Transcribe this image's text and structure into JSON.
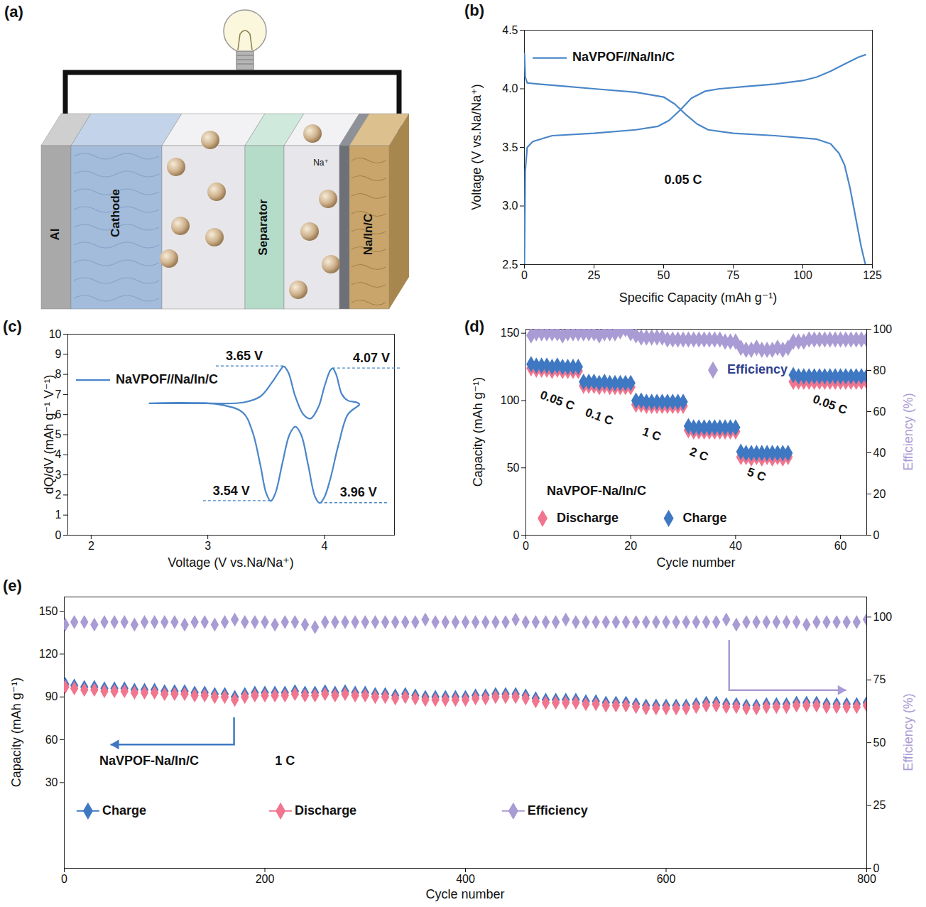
{
  "diagram": {
    "panel": "(a)",
    "current_collector": "Al",
    "cathode": "Cathode",
    "separator": "Separator",
    "anode": "Na/In/C",
    "ion": "Na⁺"
  },
  "chart_data": [
    {
      "panel": "(b)",
      "type": "line",
      "x_label": "Specific Capacity (mAh g⁻¹)",
      "y_label": "Voltage (V vs.Na/Na⁺)",
      "xlim": [
        0,
        125
      ],
      "xticks": [
        0,
        25,
        50,
        75,
        100,
        125
      ],
      "ylim": [
        2.5,
        4.5
      ],
      "yticks": [
        2.5,
        {
          "value": 3,
          "label": "3.0"
        },
        3.5,
        {
          "value": 4,
          "label": "4.0"
        },
        4.5
      ],
      "legend": "top-left",
      "annotations": [
        {
          "text": "0.05 C",
          "x": 57,
          "y": 3.22
        }
      ],
      "series": [
        {
          "name": "NaVPOF//Na/In/C",
          "color": "#4a86c8",
          "x": [
            0,
            0.3,
            1,
            3,
            10,
            25,
            40,
            48,
            52,
            56,
            60,
            65,
            70,
            80,
            90,
            100,
            105,
            110,
            115,
            120,
            122.5,
            122.5,
            0,
            0.3,
            1,
            5,
            15,
            25,
            40,
            50,
            54,
            58,
            62,
            66,
            75,
            90,
            105,
            110,
            113,
            115,
            117,
            119,
            121,
            122.5
          ],
          "values": [
            2.5,
            3.3,
            3.5,
            3.55,
            3.6,
            3.62,
            3.65,
            3.68,
            3.73,
            3.82,
            3.92,
            3.98,
            4.0,
            4.02,
            4.04,
            4.07,
            4.1,
            4.15,
            4.21,
            4.27,
            4.29,
            null,
            4.3,
            4.1,
            4.05,
            4.04,
            4.02,
            4.0,
            3.97,
            3.93,
            3.87,
            3.78,
            3.7,
            3.65,
            3.62,
            3.6,
            3.57,
            3.53,
            3.45,
            3.35,
            3.15,
            2.9,
            2.65,
            2.5
          ]
        }
      ]
    },
    {
      "panel": "(c)",
      "type": "line",
      "x_label": "Voltage (V vs.Na/Na⁺)",
      "y_label": "dQ/dV (mAh g⁻¹ V⁻¹)",
      "tick_labels": "x",
      "xlim": [
        1.8,
        4.6
      ],
      "xticks": [
        2,
        3,
        4
      ],
      "ylim": [
        0,
        10
      ],
      "legend": "top-left",
      "annotations": [
        {
          "text": "3.65 V",
          "x": 3.65,
          "y": 8.4
        },
        {
          "text": "4.07 V",
          "x": 4.07,
          "y": 8.3
        },
        {
          "text": "3.54 V",
          "x": 3.54,
          "y": 1.7
        },
        {
          "text": "3.96 V",
          "x": 3.96,
          "y": 1.6
        }
      ],
      "series": [
        {
          "name": "NaVPOF//Na/In/C",
          "color": "#4a86c8",
          "x": [
            2.5,
            3.0,
            3.3,
            3.45,
            3.55,
            3.62,
            3.65,
            3.69,
            3.75,
            3.82,
            3.88,
            3.95,
            4.0,
            4.05,
            4.07,
            4.1,
            4.15,
            4.2,
            4.28,
            4.3,
            4.28,
            4.2,
            4.12,
            4.05,
            4.0,
            3.96,
            3.92,
            3.86,
            3.8,
            3.75,
            3.7,
            3.64,
            3.58,
            3.54,
            3.5,
            3.45,
            3.38,
            3.3,
            3.1,
            2.5
          ],
          "values": [
            6.56,
            6.56,
            6.6,
            6.9,
            7.6,
            8.2,
            8.4,
            8.1,
            6.9,
            6.0,
            5.8,
            6.4,
            7.4,
            8.2,
            8.3,
            8.0,
            7.0,
            6.7,
            6.6,
            6.5,
            6.4,
            6.0,
            4.5,
            2.8,
            1.9,
            1.6,
            1.9,
            3.5,
            5.0,
            5.4,
            5.0,
            3.6,
            2.1,
            1.7,
            2.1,
            3.5,
            5.2,
            6.1,
            6.5,
            6.56
          ]
        }
      ]
    },
    {
      "panel": "(d)",
      "type": "scatter",
      "marker": "diamond",
      "x_label": "Cycle number",
      "y_label": "Capacity (mAh g⁻¹)",
      "y2_label": "Efficiency (%)",
      "xlim": [
        0,
        65
      ],
      "xticks": [
        0,
        20,
        40,
        60
      ],
      "ylim": [
        0,
        153
      ],
      "yticks": [
        0,
        50,
        100,
        150
      ],
      "y2lim": [
        0,
        100
      ],
      "y2ticks": [
        0,
        20,
        40,
        60,
        80,
        100
      ],
      "legend": "bottom-left",
      "annotations": [
        {
          "text": "NaVPOF-Na/In/C",
          "x": 4,
          "y": 33
        }
      ],
      "rate_labels": [
        {
          "text": "0.05 C",
          "x": 6,
          "y": 100
        },
        {
          "text": "0.1 C",
          "x": 14,
          "y": 88
        },
        {
          "text": "1 C",
          "x": 24,
          "y": 75
        },
        {
          "text": "2 C",
          "x": 33,
          "y": 60
        },
        {
          "text": "5 C",
          "x": 44,
          "y": 45
        },
        {
          "text": "0.05 C",
          "x": 58,
          "y": 97
        }
      ],
      "x": [
        1,
        2,
        3,
        4,
        5,
        6,
        7,
        8,
        9,
        10,
        11,
        12,
        13,
        14,
        15,
        16,
        17,
        18,
        19,
        20,
        21,
        22,
        23,
        24,
        25,
        26,
        27,
        28,
        29,
        30,
        31,
        32,
        33,
        34,
        35,
        36,
        37,
        38,
        39,
        40,
        41,
        42,
        43,
        44,
        45,
        46,
        47,
        48,
        49,
        50,
        51,
        52,
        53,
        54,
        55,
        56,
        57,
        58,
        59,
        60,
        61,
        62,
        63,
        64,
        65
      ],
      "series": [
        {
          "name": "Discharge",
          "color": "#f0758e",
          "marker": "diamond",
          "values": [
            124,
            123,
            123,
            123,
            122,
            123,
            122,
            122,
            122,
            122,
            111,
            111,
            111,
            110,
            111,
            110,
            110,
            110,
            110,
            110,
            97,
            97,
            96,
            96,
            96,
            96,
            96,
            96,
            96,
            96,
            78,
            77,
            77,
            77,
            77,
            77,
            77,
            77,
            77,
            77,
            58,
            58,
            57,
            58,
            57,
            58,
            57,
            58,
            57,
            58,
            114,
            114,
            114,
            114,
            114,
            114,
            114,
            114,
            114,
            114,
            114,
            114,
            114,
            114,
            114
          ]
        },
        {
          "name": "Charge",
          "color": "#3f78c2",
          "marker": "diamond",
          "values": [
            127,
            126,
            126,
            126,
            125,
            126,
            125,
            125,
            125,
            125,
            114,
            114,
            114,
            113,
            114,
            113,
            113,
            113,
            113,
            113,
            100,
            100,
            99,
            99,
            99,
            99,
            99,
            99,
            99,
            99,
            81,
            80,
            80,
            80,
            80,
            80,
            80,
            80,
            80,
            80,
            62,
            61,
            61,
            61,
            61,
            61,
            61,
            61,
            61,
            61,
            119,
            118,
            118,
            118,
            118,
            118,
            118,
            118,
            118,
            118,
            118,
            118,
            118,
            118,
            118
          ]
        },
        {
          "name": "Efficiency",
          "color": "#a99bd3",
          "marker": "diamond",
          "axis": "y2",
          "values": [
            97,
            98,
            98,
            98,
            98,
            98,
            97,
            98,
            98,
            98,
            98,
            98,
            98,
            97,
            98,
            98,
            98,
            99,
            100,
            98,
            97,
            96,
            96,
            96,
            96,
            96,
            95,
            95,
            95,
            95,
            95,
            95,
            95,
            95,
            95,
            95,
            95,
            94,
            94,
            94,
            91,
            90,
            90,
            91,
            90,
            90,
            90,
            91,
            90,
            91,
            94,
            94,
            94,
            95,
            95,
            95,
            95,
            95,
            95,
            95,
            95,
            95,
            95,
            95,
            95
          ]
        }
      ]
    },
    {
      "panel": "(e)",
      "type": "scatter",
      "marker": "diamond",
      "x_label": "Cycle number",
      "y_label": "Capacity (mAh g⁻¹)",
      "y2_label": "Efficiency (%)",
      "xlim": [
        0,
        800
      ],
      "xticks": [
        0,
        200,
        400,
        600,
        800
      ],
      "ylim": [
        -30,
        160
      ],
      "yticks": [
        30,
        60,
        90,
        120,
        150
      ],
      "y2lim": [
        0,
        108
      ],
      "y2ticks": [
        0,
        25,
        50,
        75,
        100
      ],
      "legend": "bottom-left",
      "annotations": [
        {
          "text": "NaVPOF-Na/In/C",
          "x": 35,
          "y": 45
        },
        {
          "text": "1 C",
          "x": 210,
          "y": 45
        }
      ],
      "x": [
        1,
        10,
        20,
        30,
        40,
        50,
        60,
        70,
        80,
        90,
        100,
        110,
        120,
        130,
        140,
        150,
        160,
        170,
        180,
        190,
        200,
        210,
        220,
        230,
        240,
        250,
        260,
        270,
        280,
        290,
        300,
        310,
        320,
        330,
        340,
        350,
        360,
        370,
        380,
        390,
        400,
        410,
        420,
        430,
        440,
        450,
        460,
        470,
        480,
        490,
        500,
        510,
        520,
        530,
        540,
        550,
        560,
        570,
        580,
        590,
        600,
        610,
        620,
        630,
        640,
        650,
        660,
        670,
        680,
        690,
        700,
        710,
        720,
        730,
        740,
        750,
        760,
        770,
        780,
        790,
        800
      ],
      "series": [
        {
          "name": "Charge",
          "color": "#3f78c2",
          "marker": "diamond",
          "values": [
            99,
            98,
            97,
            97,
            96,
            96,
            96,
            95,
            95,
            95,
            94,
            94,
            94,
            93,
            93,
            92,
            92,
            90,
            92,
            93,
            93,
            93,
            93,
            94,
            93,
            93,
            94,
            93,
            94,
            93,
            93,
            92,
            92,
            91,
            92,
            91,
            90,
            90,
            90,
            90,
            90,
            91,
            91,
            92,
            92,
            92,
            91,
            89,
            88,
            88,
            88,
            88,
            87,
            87,
            86,
            86,
            86,
            85,
            84,
            84,
            84,
            84,
            84,
            85,
            86,
            86,
            85,
            85,
            84,
            84,
            85,
            85,
            85,
            86,
            86,
            86,
            85,
            85,
            85,
            85,
            86
          ]
        },
        {
          "name": "Discharge",
          "color": "#f0758e",
          "marker": "diamond",
          "values": [
            97,
            96,
            95,
            95,
            94,
            94,
            94,
            93,
            93,
            93,
            92,
            92,
            92,
            91,
            91,
            90,
            90,
            88,
            90,
            91,
            91,
            91,
            91,
            92,
            91,
            91,
            92,
            91,
            92,
            91,
            91,
            90,
            90,
            89,
            90,
            89,
            88,
            88,
            88,
            88,
            88,
            89,
            89,
            90,
            90,
            90,
            89,
            87,
            86,
            86,
            86,
            86,
            85,
            85,
            84,
            84,
            84,
            83,
            82,
            82,
            82,
            82,
            82,
            83,
            84,
            84,
            83,
            83,
            82,
            82,
            83,
            83,
            83,
            84,
            84,
            84,
            83,
            83,
            83,
            83,
            84
          ]
        },
        {
          "name": "Efficiency",
          "color": "#a99bd3",
          "marker": "diamond",
          "axis": "y2",
          "values": [
            97,
            98,
            98,
            97,
            98,
            98,
            98,
            97,
            98,
            98,
            98,
            98,
            97,
            98,
            98,
            97,
            98,
            99,
            98,
            98,
            98,
            97,
            98,
            98,
            97,
            96,
            98,
            98,
            98,
            98,
            98,
            98,
            98,
            98,
            98,
            98,
            99,
            98,
            98,
            98,
            98,
            98,
            98,
            98,
            98,
            99,
            98,
            98,
            98,
            98,
            99,
            98,
            98,
            98,
            98,
            98,
            98,
            98,
            98,
            98,
            98,
            98,
            98,
            98,
            98,
            98,
            99,
            97,
            98,
            98,
            98,
            98,
            98,
            98,
            97,
            98,
            98,
            98,
            98,
            98,
            99
          ]
        }
      ]
    }
  ]
}
